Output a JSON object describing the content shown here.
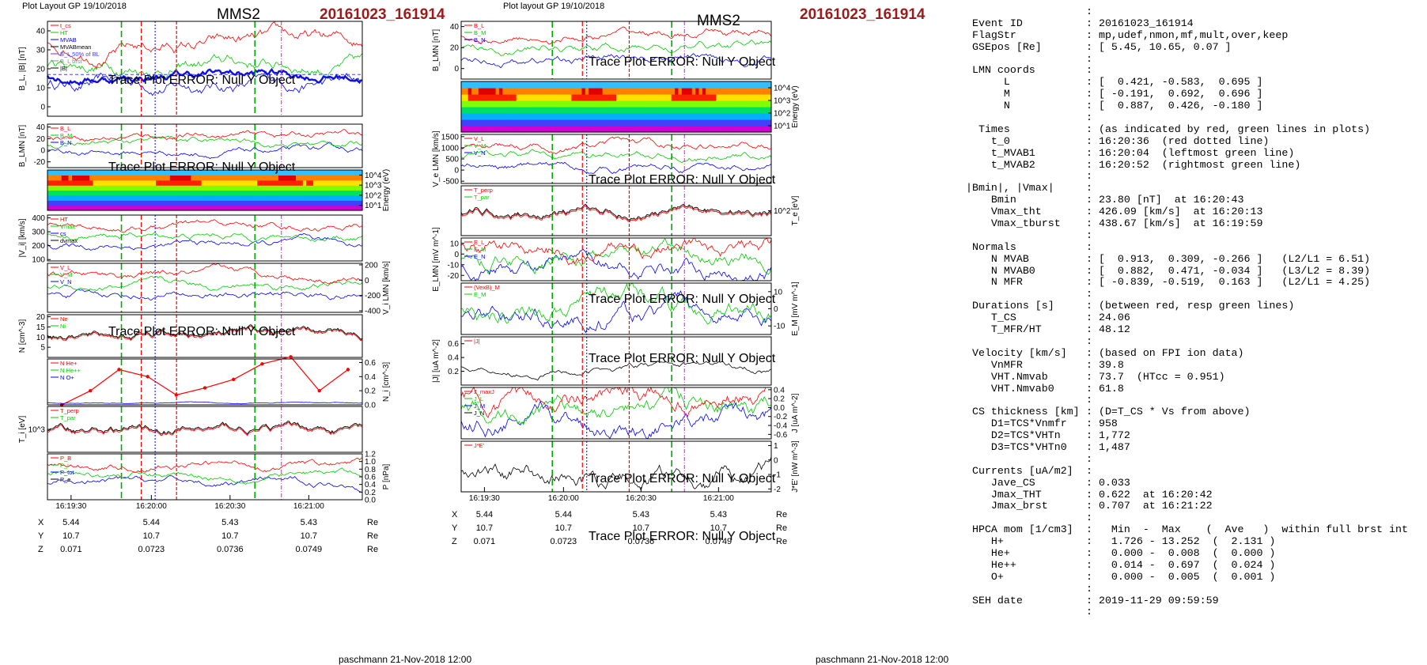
{
  "left_panel": {
    "header": "Plot Layout GP 19/10/2018",
    "spacecraft": "MMS2",
    "event": "20161023_161914",
    "error_text": "Trace Plot ERROR: Null Y Object",
    "footer": "paschmann 21-Nov-2018 12:00"
  },
  "right_panel": {
    "header": "Plot layout GP 19/10/2018",
    "spacecraft": "MMS2",
    "event": "20161023_161914",
    "error_text": "Trace Plot ERROR: Null Y Object",
    "footer": "paschmann 21-Nov-2018 12:00"
  },
  "orbit_table": {
    "ticks": [
      "16:19:30",
      "16:20:00",
      "16:20:30",
      "16:21:00"
    ],
    "rows": [
      {
        "label": "X",
        "values": [
          "5.44",
          "5.44",
          "5.43",
          "5.43"
        ],
        "unit": "Re"
      },
      {
        "label": "Y",
        "values": [
          "10.7",
          "10.7",
          "10.7",
          "10.7"
        ],
        "unit": "Re"
      },
      {
        "label": "Z",
        "values": [
          "0.071",
          "0.0723",
          "0.0736",
          "0.0749"
        ],
        "unit": "Re"
      }
    ]
  },
  "colors": {
    "red": "#ff0000",
    "green": "#00cc00",
    "blue": "#0000ff",
    "event_red": "#9b1a1a",
    "threshold": "#4040ff"
  },
  "chart_data": [
    {
      "panel": "left",
      "type": "line",
      "ylabel": "B_L, |B| [nT]",
      "ylim": [
        -5,
        45
      ],
      "yticks": [
        "0",
        "10",
        "20",
        "30",
        "40"
      ],
      "legend": [
        "t_cs",
        "HT",
        "MVAB",
        "MVABmean",
        "B_L 50% of BL",
        "B_L brst",
        "|B|"
      ],
      "threshold": 17
    },
    {
      "panel": "left",
      "type": "line",
      "ylabel": "B_LMN [nT]",
      "ylim": [
        -30,
        45
      ],
      "yticks": [
        "-20",
        "0",
        "20",
        "40"
      ],
      "legend": [
        "B_L",
        "B_M",
        "B_N"
      ]
    },
    {
      "panel": "left",
      "type": "heatmap",
      "ylabel": "Energy (eV)",
      "yticks": [
        "10^1",
        "10^2",
        "10^3",
        "10^4"
      ]
    },
    {
      "panel": "left",
      "type": "line",
      "ylabel": "|V_i| [km/s]",
      "ylim": [
        90,
        420
      ],
      "yticks": [
        "100",
        "200",
        "300",
        "400"
      ],
      "legend": [
        "HT",
        "Vmax",
        "cs",
        "dvmax"
      ]
    },
    {
      "panel": "left",
      "type": "line",
      "ylabel": "V_i LMN [km/s]",
      "ylim": [
        -420,
        220
      ],
      "yticks": [
        "-400",
        "-200",
        "0",
        "200"
      ],
      "legend": [
        "V_L",
        "V_M",
        "V_N"
      ]
    },
    {
      "panel": "left",
      "type": "line",
      "ylabel": "N [cm^-3]",
      "ylim": [
        0,
        21
      ],
      "yticks": [
        "5",
        "10",
        "15",
        "20"
      ],
      "legend": [
        "Ne",
        "Ni"
      ]
    },
    {
      "panel": "left",
      "type": "line",
      "ylabel": "N_i [cm^-3]",
      "ylim": [
        0,
        0.65
      ],
      "yticks": [
        "0.0",
        "0.2",
        "0.4",
        "0.6"
      ],
      "legend": [
        "N He+",
        "N He++",
        "N O+"
      ],
      "series": [
        {
          "name": "N He++",
          "values": [
            0.0,
            0.2,
            0.5,
            0.4,
            0.14,
            0.24,
            0.36,
            0.58,
            0.68,
            0.2,
            0.5
          ]
        }
      ]
    },
    {
      "panel": "left",
      "type": "line",
      "ylabel": "T_i [eV]",
      "yticks": [
        "10^3"
      ],
      "legend": [
        "T_perp",
        "T_par"
      ]
    },
    {
      "panel": "left",
      "type": "line",
      "ylabel": "P [nPa]",
      "ylim": [
        0,
        1.2
      ],
      "yticks": [
        "0.0",
        "0.2",
        "0.4",
        "0.6",
        "0.8",
        "1.0",
        "1.2"
      ],
      "legend": [
        "P_B",
        "P_i",
        "P_tot",
        "P_e"
      ]
    },
    {
      "panel": "right",
      "type": "line",
      "ylabel": "B_LMN [nT]",
      "ylim": [
        -10,
        45
      ],
      "yticks": [
        "0",
        "20",
        "40"
      ],
      "legend": [
        "B_L",
        "B_M",
        "B_N"
      ]
    },
    {
      "panel": "right",
      "type": "heatmap",
      "ylabel": "Energy (eV)",
      "yticks": [
        "10^1",
        "10^2",
        "10^3",
        "10^4"
      ]
    },
    {
      "panel": "right",
      "type": "line",
      "ylabel": "V_e LMN [km/s]",
      "ylim": [
        -600,
        1600
      ],
      "yticks": [
        "-500",
        "0",
        "500",
        "1000",
        "1500"
      ],
      "legend": [
        "V_L",
        "V_M",
        "V_N"
      ]
    },
    {
      "panel": "right",
      "type": "line",
      "ylabel": "T_e [eV]",
      "yticks": [
        "10^2"
      ],
      "legend": [
        "T_perp",
        "T_par"
      ]
    },
    {
      "panel": "right",
      "type": "line",
      "ylabel": "E_LMN [mV m^-1]",
      "ylim": [
        -25,
        15
      ],
      "yticks": [
        "-20",
        "-10",
        "0",
        "10"
      ],
      "legend": [
        "E_L",
        "E_M",
        "E_N"
      ]
    },
    {
      "panel": "right",
      "type": "line",
      "ylabel": "E_M [mV m^-1]",
      "ylim": [
        -15,
        15
      ],
      "yticks": [
        "-10",
        "0",
        "10"
      ],
      "legend": [
        "(VexB)_M",
        "E_M"
      ]
    },
    {
      "panel": "right",
      "type": "line",
      "ylabel": "|J| [uA m^-2]",
      "ylim": [
        0,
        0.7
      ],
      "yticks": [
        "0.2",
        "0.4",
        "0.6"
      ],
      "legend": [
        "|J|"
      ]
    },
    {
      "panel": "right",
      "type": "line",
      "ylabel": "J [uA m^-2]",
      "ylim": [
        -0.7,
        0.45
      ],
      "yticks": [
        "-0.6",
        "-0.4",
        "-0.2",
        "0.0",
        "0.2",
        "0.4"
      ],
      "legend": [
        "J_maxJ",
        "J_L",
        "J_M",
        "J_N"
      ]
    },
    {
      "panel": "right",
      "type": "line",
      "ylabel": "J*E' [nW m^-3]",
      "ylim": [
        -2.2,
        1.3
      ],
      "yticks": [
        "-2",
        "-1",
        "0",
        "1"
      ],
      "legend": [
        "J*E'"
      ]
    }
  ],
  "info": [
    {
      "k": "",
      "v": ":"
    },
    {
      "k": " Event ID",
      "v": ": 20161023_161914"
    },
    {
      "k": " FlagStr",
      "v": ": mp,udef,nmon,mf,mult,over,keep"
    },
    {
      "k": " GSEpos [Re]",
      "v": ": [ 5.45, 10.65, 0.07 ]"
    },
    {
      "k": "",
      "v": ":"
    },
    {
      "k": " LMN coords",
      "v": ":"
    },
    {
      "k": "      L",
      "v": ": [  0.421, -0.583,  0.695 ]"
    },
    {
      "k": "      M",
      "v": ": [ -0.191,  0.692,  0.696 ]"
    },
    {
      "k": "      N",
      "v": ": [  0.887,  0.426, -0.180 ]"
    },
    {
      "k": "",
      "v": ":"
    },
    {
      "k": "  Times",
      "v": ": (as indicated by red, green lines in plots)"
    },
    {
      "k": "    t_0",
      "v": ": 16:20:36  (red dotted line)"
    },
    {
      "k": "    t_MVAB1",
      "v": ": 16:20:04  (leftmost green line)"
    },
    {
      "k": "    t_MVAB2",
      "v": ": 16:20:52  (rightmost green line)"
    },
    {
      "k": "",
      "v": ":"
    },
    {
      "k": "|Bmin|, |Vmax|",
      "v": ":"
    },
    {
      "k": "    Bmin",
      "v": ": 23.80 [nT]  at 16:20:43"
    },
    {
      "k": "    Vmax_tht",
      "v": ": 426.09 [km/s]  at 16:20:13"
    },
    {
      "k": "    Vmax_tburst",
      "v": ": 438.67 [km/s]  at 16:19:59"
    },
    {
      "k": "",
      "v": ":"
    },
    {
      "k": " Normals",
      "v": ":"
    },
    {
      "k": "    N MVAB",
      "v": ": [  0.913,  0.309, -0.266 ]   (L2/L1 = 6.51)"
    },
    {
      "k": "    N MVAB0",
      "v": ": [  0.882,  0.471, -0.034 ]   (L3/L2 = 8.39)"
    },
    {
      "k": "    N MFR",
      "v": ": [ -0.839, -0.519,  0.163 ]   (L2/L1 = 4.25)"
    },
    {
      "k": "",
      "v": ":"
    },
    {
      "k": " Durations [s]",
      "v": ": (between red, resp green lines)"
    },
    {
      "k": "    T_CS",
      "v": ": 24.06"
    },
    {
      "k": "    T_MFR/HT",
      "v": ": 48.12"
    },
    {
      "k": "",
      "v": ":"
    },
    {
      "k": " Velocity [km/s]",
      "v": ": (based on FPI ion data)"
    },
    {
      "k": "    VnMFR",
      "v": ": 39.8"
    },
    {
      "k": "    VHT.Nmvab",
      "v": ": 73.7  (HTcc = 0.951)"
    },
    {
      "k": "    VHT.Nmvab0",
      "v": ": 61.8"
    },
    {
      "k": "",
      "v": ":"
    },
    {
      "k": " CS thickness [km]",
      "v": ": (D=T_CS * Vs from above)"
    },
    {
      "k": "    D1=TCS*Vnmfr",
      "v": ": 958"
    },
    {
      "k": "    D2=TCS*VHTn",
      "v": ": 1,772"
    },
    {
      "k": "    D3=TCS*VHTn0",
      "v": ": 1,487"
    },
    {
      "k": "",
      "v": ":"
    },
    {
      "k": " Currents [uA/m2]",
      "v": ":"
    },
    {
      "k": "    Jave_CS",
      "v": ": 0.033"
    },
    {
      "k": "    Jmax_THT",
      "v": ": 0.622  at 16:20:42"
    },
    {
      "k": "    Jmax_brst",
      "v": ": 0.707  at 16:21:22"
    },
    {
      "k": "",
      "v": ":"
    },
    {
      "k": " HPCA mom [1/cm3]",
      "v": ":   Min  -  Max    (  Ave   )  within full brst int"
    },
    {
      "k": "    H+",
      "v": ":   1.726 - 13.252  (  2.131 )"
    },
    {
      "k": "    He+",
      "v": ":   0.000 -  0.008  (  0.000 )"
    },
    {
      "k": "    He++",
      "v": ":   0.014 -  0.697  (  0.024 )"
    },
    {
      "k": "    O+",
      "v": ":   0.000 -  0.005  (  0.001 )"
    },
    {
      "k": "",
      "v": ":"
    },
    {
      "k": " SEH date",
      "v": ": 2019-11-29 09:59:59"
    },
    {
      "k": "",
      "v": ":"
    }
  ]
}
